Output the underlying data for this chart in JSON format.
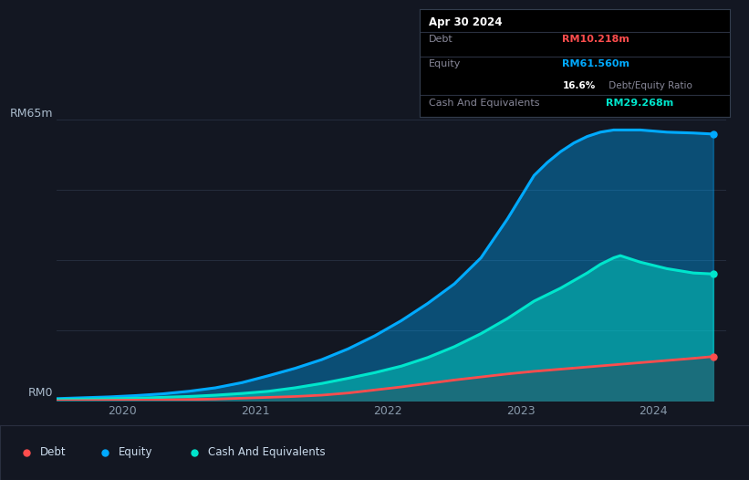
{
  "bg_color": "#131722",
  "plot_bg_color": "#131722",
  "grid_color": "#252d3d",
  "title_date": "Apr 30 2024",
  "debt_color": "#ff4d4d",
  "equity_color": "#00aaff",
  "cash_color": "#00e5cc",
  "debt_value": "RM10.218m",
  "equity_value": "RM61.560m",
  "ratio_value": "16.6%",
  "cash_value": "RM29.268m",
  "ylabel_text": "RM65m",
  "ylabel0_text": "RM0",
  "x_labels": [
    "2020",
    "2021",
    "2022",
    "2023",
    "2024"
  ],
  "x_ticks": [
    2020.0,
    2021.0,
    2022.0,
    2023.0,
    2024.0
  ],
  "ylim": [
    0,
    72
  ],
  "xlim": [
    2019.5,
    2024.55
  ],
  "equity_x": [
    2019.5,
    2019.7,
    2019.9,
    2020.1,
    2020.3,
    2020.5,
    2020.7,
    2020.9,
    2021.1,
    2021.3,
    2021.5,
    2021.7,
    2021.9,
    2022.1,
    2022.3,
    2022.5,
    2022.7,
    2022.9,
    2023.1,
    2023.2,
    2023.3,
    2023.4,
    2023.5,
    2023.6,
    2023.7,
    2023.9,
    2024.1,
    2024.3,
    2024.45
  ],
  "equity_y": [
    0.5,
    0.7,
    0.9,
    1.2,
    1.6,
    2.2,
    3.0,
    4.2,
    5.8,
    7.5,
    9.5,
    12.0,
    15.0,
    18.5,
    22.5,
    27.0,
    33.0,
    42.0,
    52.0,
    55.0,
    57.5,
    59.5,
    61.0,
    62.0,
    62.5,
    62.5,
    62.0,
    61.8,
    61.56
  ],
  "cash_x": [
    2019.5,
    2019.7,
    2019.9,
    2020.1,
    2020.3,
    2020.5,
    2020.7,
    2020.9,
    2021.1,
    2021.3,
    2021.5,
    2021.7,
    2021.9,
    2022.1,
    2022.3,
    2022.5,
    2022.7,
    2022.9,
    2023.1,
    2023.3,
    2023.5,
    2023.6,
    2023.7,
    2023.75,
    2023.8,
    2023.9,
    2024.1,
    2024.3,
    2024.45
  ],
  "cash_y": [
    0.3,
    0.4,
    0.5,
    0.6,
    0.8,
    1.0,
    1.3,
    1.7,
    2.2,
    3.0,
    4.0,
    5.2,
    6.5,
    8.0,
    10.0,
    12.5,
    15.5,
    19.0,
    23.0,
    26.0,
    29.5,
    31.5,
    33.0,
    33.5,
    33.0,
    32.0,
    30.5,
    29.5,
    29.268
  ],
  "debt_x": [
    2019.5,
    2019.7,
    2019.9,
    2020.1,
    2020.3,
    2020.5,
    2020.7,
    2020.9,
    2021.1,
    2021.3,
    2021.5,
    2021.7,
    2021.9,
    2022.1,
    2022.3,
    2022.5,
    2022.7,
    2022.9,
    2023.1,
    2023.3,
    2023.5,
    2023.7,
    2023.9,
    2024.1,
    2024.3,
    2024.45
  ],
  "debt_y": [
    0.0,
    0.05,
    0.1,
    0.15,
    0.2,
    0.3,
    0.4,
    0.6,
    0.8,
    1.0,
    1.3,
    1.8,
    2.5,
    3.2,
    4.0,
    4.8,
    5.5,
    6.2,
    6.8,
    7.3,
    7.8,
    8.3,
    8.8,
    9.3,
    9.8,
    10.218
  ]
}
